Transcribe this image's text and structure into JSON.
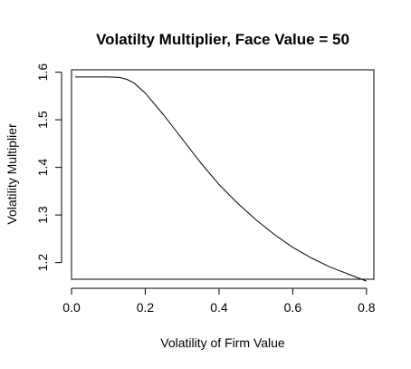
{
  "chart_data": {
    "type": "line",
    "title": "Volatilty Multiplier, Face Value = 50",
    "xlabel": "Volatility of Firm Value",
    "ylabel": "Volatility Multiplier",
    "xlim": [
      0.0,
      0.82
    ],
    "ylim": [
      1.165,
      1.605
    ],
    "xticks": [
      0.0,
      0.2,
      0.4,
      0.6,
      0.8
    ],
    "xtick_labels": [
      "0.0",
      "0.2",
      "0.4",
      "0.6",
      "0.8"
    ],
    "yticks": [
      1.2,
      1.3,
      1.4,
      1.5,
      1.6
    ],
    "ytick_labels": [
      "1.2",
      "1.3",
      "1.4",
      "1.5",
      "1.6"
    ],
    "grid": false,
    "legend": "none",
    "series": [
      {
        "x": [
          0.01,
          0.05,
          0.1,
          0.13,
          0.15,
          0.17,
          0.2,
          0.25,
          0.3,
          0.35,
          0.4,
          0.45,
          0.5,
          0.55,
          0.6,
          0.65,
          0.7,
          0.75,
          0.8
        ],
        "y": [
          1.59,
          1.59,
          1.59,
          1.589,
          1.585,
          1.577,
          1.556,
          1.51,
          1.46,
          1.41,
          1.364,
          1.325,
          1.29,
          1.259,
          1.232,
          1.21,
          1.191,
          1.176,
          1.161
        ]
      }
    ]
  }
}
